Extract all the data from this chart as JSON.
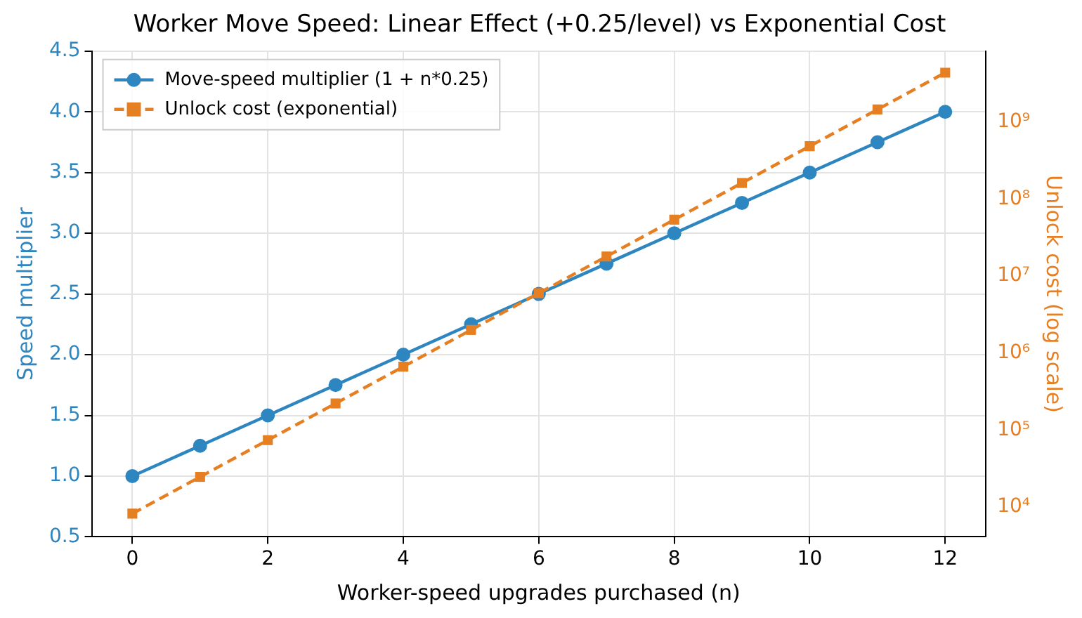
{
  "chart_data": {
    "type": "line",
    "title": "Worker Move Speed: Linear Effect (+0.25/level) vs Exponential Cost",
    "xlabel": "Worker-speed upgrades purchased (n)",
    "ylabel": "Speed multiplier",
    "y2label": "Unlock cost (log scale)",
    "x": [
      0,
      1,
      2,
      3,
      4,
      5,
      6,
      7,
      8,
      9,
      10,
      11,
      12
    ],
    "series": [
      {
        "name": "Move-speed multiplier (1 + n*0.25)",
        "color": "#2e86c1",
        "marker": "circle",
        "line_style": "solid",
        "values": [
          1.0,
          1.25,
          1.5,
          1.75,
          2.0,
          2.25,
          2.5,
          2.75,
          3.0,
          3.25,
          3.5,
          3.75,
          4.0
        ]
      },
      {
        "name": "Unlock cost (exponential)",
        "color": "#e67e22",
        "marker": "square",
        "line_style": "dashed",
        "axis": "y2",
        "values": [
          8200,
          24600,
          73800,
          221000,
          664000,
          1990000,
          5980000,
          17900000,
          53800000,
          161000000,
          484000000,
          1450000000,
          4360000000
        ]
      }
    ],
    "xlim": [
      -0.6,
      12.6
    ],
    "xticks": [
      0,
      2,
      4,
      6,
      8,
      10,
      12
    ],
    "ylim": [
      0.5,
      4.5
    ],
    "yticks": [
      {
        "value": 0.5,
        "label": "0.5"
      },
      {
        "value": 1,
        "label": "1.0"
      },
      {
        "value": 1.5,
        "label": "1.5"
      },
      {
        "value": 2,
        "label": "2.0"
      },
      {
        "value": 2.5,
        "label": "2.5"
      },
      {
        "value": 3,
        "label": "3.0"
      },
      {
        "value": 3.5,
        "label": "3.5"
      },
      {
        "value": 4,
        "label": "4.0"
      },
      {
        "value": 4.5,
        "label": "4.5"
      }
    ],
    "y2lim": [
      4100,
      8300000000
    ],
    "y2ticks": [
      {
        "value": 10000,
        "label": "10⁴"
      },
      {
        "value": 100000,
        "label": "10⁵"
      },
      {
        "value": 1000000,
        "label": "10⁶"
      },
      {
        "value": 10000000,
        "label": "10⁷"
      },
      {
        "value": 100000000,
        "label": "10⁸"
      },
      {
        "value": 1000000000,
        "label": "10⁹"
      }
    ],
    "log": "y2",
    "grid": true,
    "legend": "top left"
  }
}
